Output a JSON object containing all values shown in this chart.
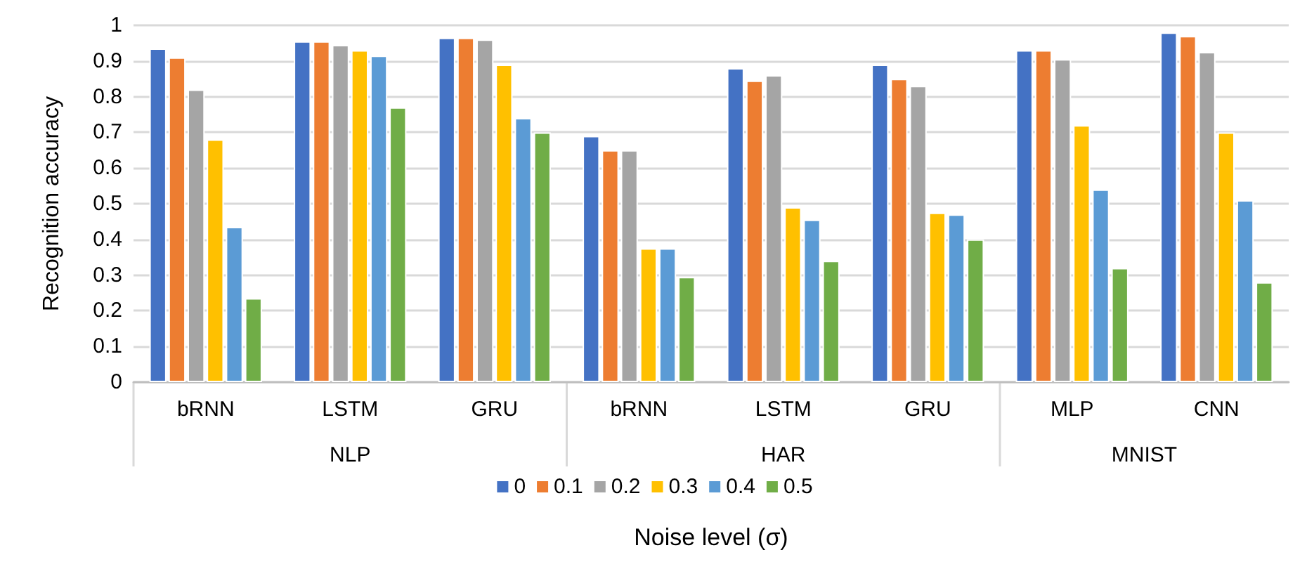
{
  "chart_data": {
    "type": "bar",
    "xlabel": "Noise level (σ)",
    "ylabel": "Recognition accuracy",
    "categories": [
      "bRNN",
      "LSTM",
      "GRU",
      "bRNN",
      "LSTM",
      "GRU",
      "MLP",
      "CNN"
    ],
    "annotations": [
      "NLP",
      "HAR",
      "MNIST"
    ],
    "series": [
      {
        "name": "0",
        "color": "#4472c4",
        "values": [
          0.935,
          0.955,
          0.965,
          0.69,
          0.88,
          0.89,
          0.93,
          0.98
        ]
      },
      {
        "name": "0.1",
        "color": "#ed7d31",
        "values": [
          0.91,
          0.955,
          0.965,
          0.65,
          0.845,
          0.85,
          0.93,
          0.97
        ]
      },
      {
        "name": "0.2",
        "color": "#a5a5a5",
        "values": [
          0.82,
          0.945,
          0.96,
          0.65,
          0.86,
          0.83,
          0.905,
          0.925
        ]
      },
      {
        "name": "0.3",
        "color": "#ffc000",
        "values": [
          0.68,
          0.93,
          0.89,
          0.375,
          0.49,
          0.475,
          0.72,
          0.7
        ]
      },
      {
        "name": "0.4",
        "color": "#5b9bd5",
        "values": [
          0.435,
          0.915,
          0.74,
          0.375,
          0.455,
          0.47,
          0.54,
          0.51
        ]
      },
      {
        "name": "0.5",
        "color": "#70ad47",
        "values": [
          0.235,
          0.77,
          0.7,
          0.295,
          0.34,
          0.4,
          0.32,
          0.28
        ]
      }
    ],
    "ylim": [
      0,
      1
    ],
    "yticks": [
      0,
      0.1,
      0.2,
      0.3,
      0.4,
      0.5,
      0.6,
      0.7,
      0.8,
      0.9,
      1
    ],
    "grid": "y",
    "legend": "bottom"
  }
}
